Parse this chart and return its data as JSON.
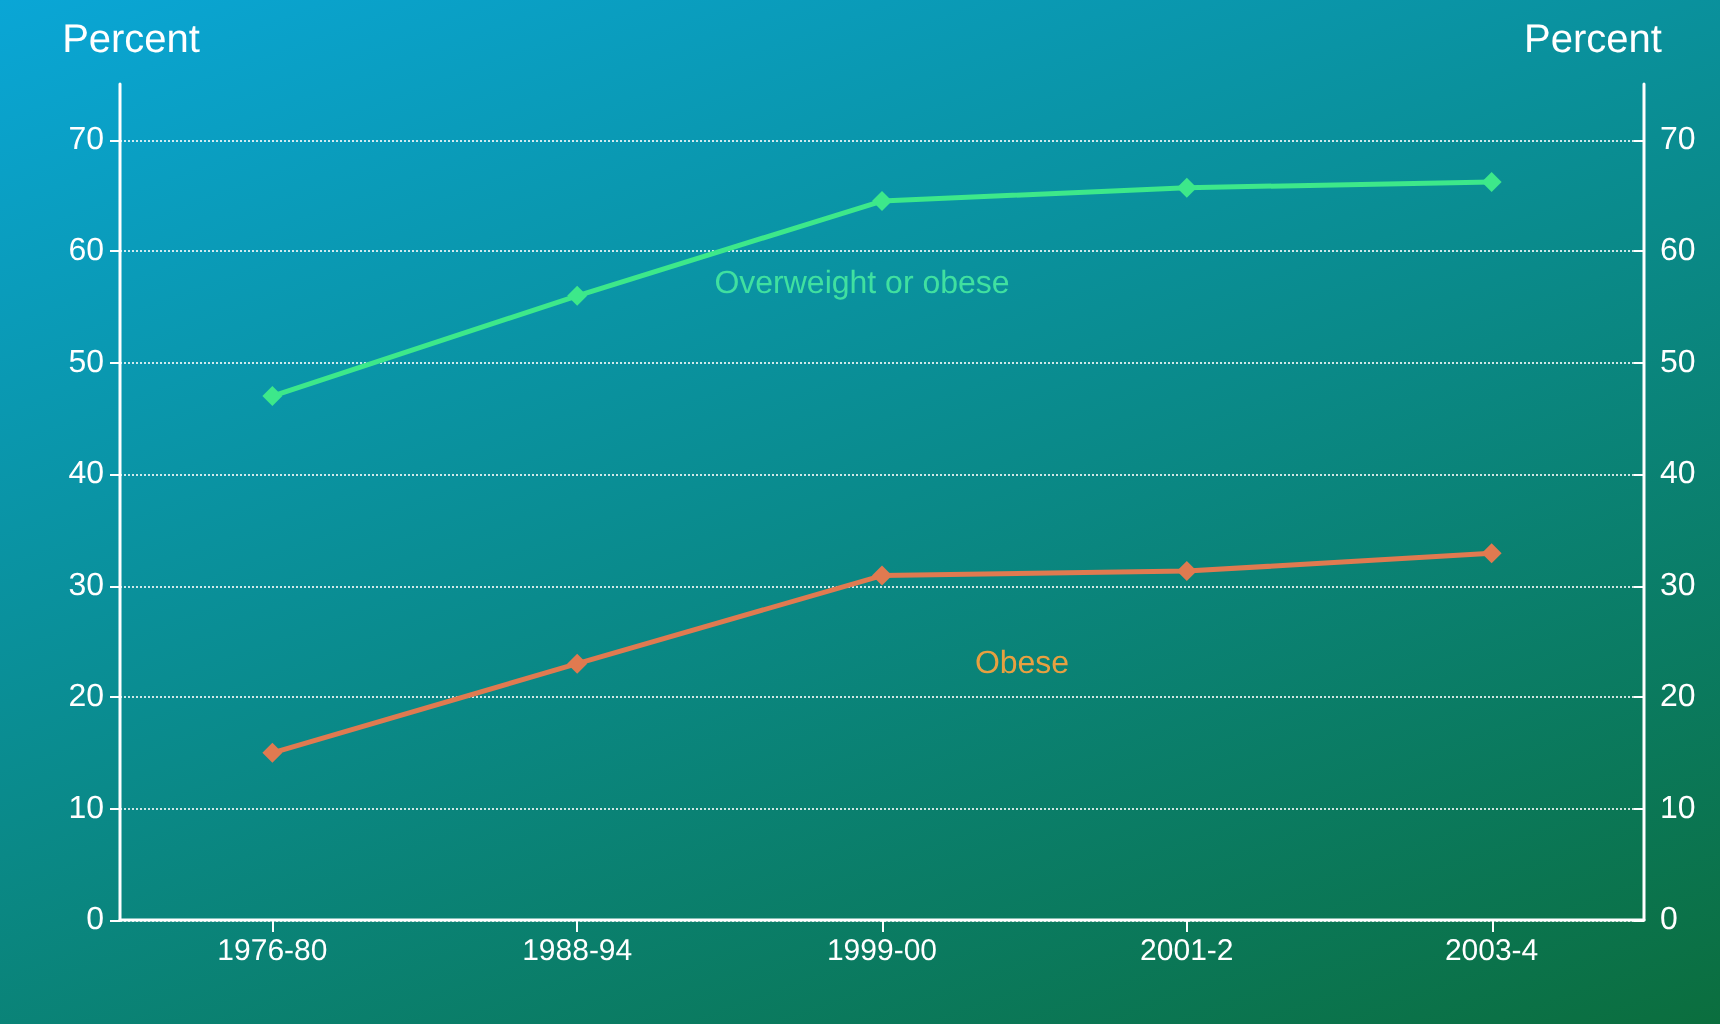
{
  "chart_data": {
    "type": "line",
    "ylabel": "Percent",
    "y2label": "Percent",
    "categories": [
      "1976-80",
      "1988-94",
      "1999-00",
      "2001-2",
      "2003-4"
    ],
    "ylim": [
      0,
      75
    ],
    "yticks": [
      0,
      10,
      20,
      30,
      40,
      50,
      60,
      70
    ],
    "y2lim": [
      0,
      75
    ],
    "y2ticks": [
      0,
      10,
      20,
      30,
      40,
      50,
      60,
      70
    ],
    "series": [
      {
        "name": "Overweight or obese",
        "color": "#3de88a",
        "values": [
          47,
          56,
          64.5,
          65.7,
          66.2
        ]
      },
      {
        "name": "Obese",
        "color": "#e07a50",
        "values": [
          15,
          23,
          30.9,
          31.3,
          32.9
        ]
      }
    ],
    "grid": "y",
    "legend": false,
    "marker": "diamond",
    "line_style": "solid"
  }
}
